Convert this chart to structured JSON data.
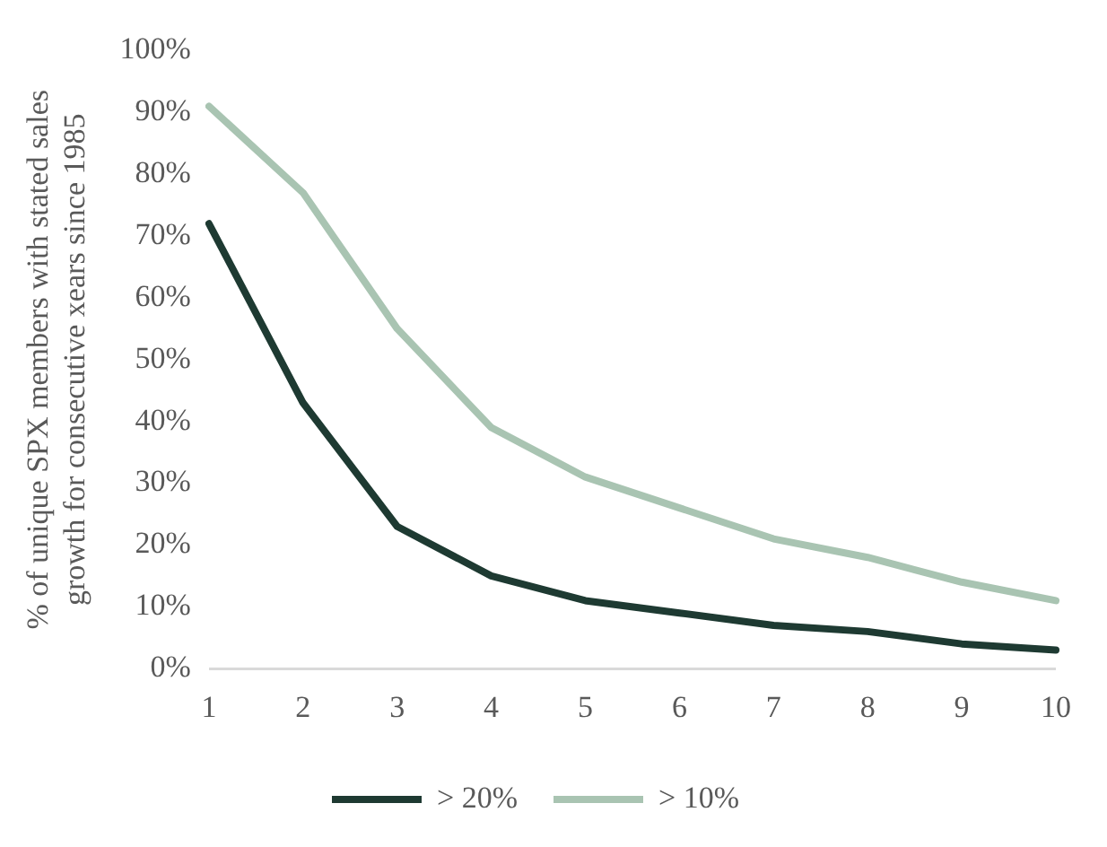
{
  "chart_data": {
    "type": "line",
    "ylabel": "% of unique SPX members with stated sales growth for consecutive xears since 1985",
    "categories": [
      "1",
      "2",
      "3",
      "4",
      "5",
      "6",
      "7",
      "8",
      "9",
      "10"
    ],
    "series": [
      {
        "name": "> 20%",
        "color": "#1e3a32",
        "values": [
          72,
          43,
          23,
          15,
          11,
          9,
          7,
          6,
          4,
          3
        ]
      },
      {
        "name": "> 10%",
        "color": "#a9c4b2",
        "values": [
          91,
          77,
          55,
          39,
          31,
          26,
          21,
          18,
          14,
          11
        ]
      }
    ],
    "ylim": [
      0,
      100
    ],
    "yticks": [
      {
        "value": 0,
        "label": "0%"
      },
      {
        "value": 10,
        "label": "10%"
      },
      {
        "value": 20,
        "label": "20%"
      },
      {
        "value": 30,
        "label": "30%"
      },
      {
        "value": 40,
        "label": "40%"
      },
      {
        "value": 50,
        "label": "50%"
      },
      {
        "value": 60,
        "label": "60%"
      },
      {
        "value": 70,
        "label": "70%"
      },
      {
        "value": 80,
        "label": "80%"
      },
      {
        "value": 90,
        "label": "90%"
      },
      {
        "value": 100,
        "label": "100%"
      }
    ],
    "grid": false,
    "legend": "bottom",
    "marker": "none",
    "line_style": "solid"
  }
}
